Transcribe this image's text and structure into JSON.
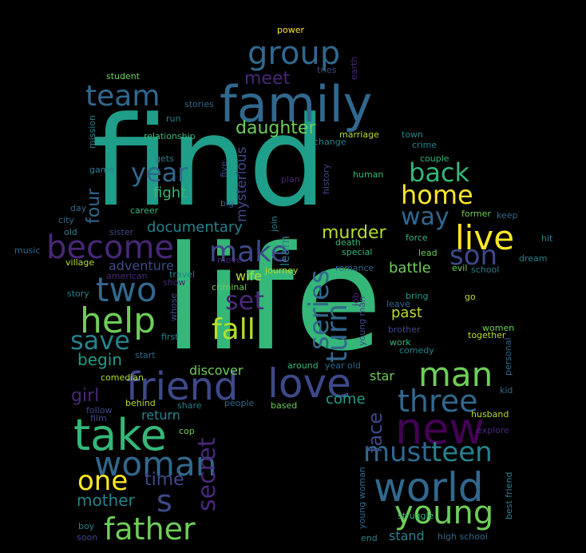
{
  "colors": {
    "background": "#000000",
    "palette_viridis": [
      "#440154",
      "#482878",
      "#3e4989",
      "#31688e",
      "#26828e",
      "#1f9e89",
      "#35b779",
      "#6ece58",
      "#b5de2b",
      "#fde725"
    ]
  },
  "words": [
    {
      "text": "find",
      "color": "#1f9e89"
    },
    {
      "text": "life",
      "color": "#35b779"
    },
    {
      "text": "family",
      "color": "#31688e"
    },
    {
      "text": "friend",
      "color": "#3e4989"
    },
    {
      "text": "love",
      "color": "#3e4989"
    },
    {
      "text": "take",
      "color": "#35b779"
    },
    {
      "text": "world",
      "color": "#31688e"
    },
    {
      "text": "new",
      "color": "#440154"
    },
    {
      "text": "woman",
      "color": "#31688e"
    },
    {
      "text": "man",
      "color": "#6ece58"
    },
    {
      "text": "young",
      "color": "#6ece58"
    },
    {
      "text": "father",
      "color": "#6ece58"
    },
    {
      "text": "two",
      "color": "#31688e"
    },
    {
      "text": "become",
      "color": "#482878"
    },
    {
      "text": "help",
      "color": "#6ece58"
    },
    {
      "text": "three",
      "color": "#31688e"
    },
    {
      "text": "group",
      "color": "#31688e"
    },
    {
      "text": "team",
      "color": "#31688e"
    },
    {
      "text": "make",
      "color": "#3e4989"
    },
    {
      "text": "live",
      "color": "#fde725"
    },
    {
      "text": "fall",
      "color": "#b5de2b"
    },
    {
      "text": "series",
      "color": "#31688e"
    },
    {
      "text": "turn",
      "color": "#31688e"
    },
    {
      "text": "must",
      "color": "#31688e"
    },
    {
      "text": "teen",
      "color": "#26828e"
    },
    {
      "text": "save",
      "color": "#26828e"
    },
    {
      "text": "one",
      "color": "#fde725"
    },
    {
      "text": "year",
      "color": "#31688e"
    },
    {
      "text": "back",
      "color": "#35b779"
    },
    {
      "text": "home",
      "color": "#fde725"
    },
    {
      "text": "son",
      "color": "#3e4989"
    },
    {
      "text": "set",
      "color": "#482878"
    },
    {
      "text": "way",
      "color": "#31688e"
    },
    {
      "text": "secret",
      "color": "#482878"
    },
    {
      "text": "daughter",
      "color": "#6ece58"
    },
    {
      "text": "meet",
      "color": "#482878"
    },
    {
      "text": "murder",
      "color": "#b5de2b"
    },
    {
      "text": "face",
      "color": "#3e4989"
    },
    {
      "text": "girl",
      "color": "#482878"
    },
    {
      "text": "four",
      "color": "#31688e"
    },
    {
      "text": "begin",
      "color": "#1f9e89"
    },
    {
      "text": "time",
      "color": "#3e4989"
    },
    {
      "text": "s",
      "color": "#3e4989"
    },
    {
      "text": "mother",
      "color": "#26828e"
    },
    {
      "text": "documentary",
      "color": "#26828e"
    },
    {
      "text": "adventure",
      "color": "#3e4989"
    },
    {
      "text": "fight",
      "color": "#35b779"
    },
    {
      "text": "mysterious",
      "color": "#3e4989"
    },
    {
      "text": "battle",
      "color": "#6ece58"
    },
    {
      "text": "past",
      "color": "#b5de2b"
    },
    {
      "text": "discover",
      "color": "#6ece58"
    },
    {
      "text": "wife",
      "color": "#b5de2b"
    },
    {
      "text": "come",
      "color": "#1f9e89"
    },
    {
      "text": "stand",
      "color": "#26828e"
    },
    {
      "text": "star",
      "color": "#6ece58"
    },
    {
      "text": "return",
      "color": "#26828e"
    },
    {
      "text": "learn",
      "color": "#26828e"
    },
    {
      "text": "power",
      "color": "#fde725"
    },
    {
      "text": "student",
      "color": "#6ece58"
    },
    {
      "text": "tries",
      "color": "#3e4989"
    },
    {
      "text": "earth",
      "color": "#482878"
    },
    {
      "text": "stories",
      "color": "#31688e"
    },
    {
      "text": "mission",
      "color": "#26828e"
    },
    {
      "text": "run",
      "color": "#26828e"
    },
    {
      "text": "relationship",
      "color": "#35b779"
    },
    {
      "text": "marriage",
      "color": "#b5de2b"
    },
    {
      "text": "town",
      "color": "#26828e"
    },
    {
      "text": "change",
      "color": "#26828e"
    },
    {
      "text": "crime",
      "color": "#26828e"
    },
    {
      "text": "couple",
      "color": "#35b779"
    },
    {
      "text": "gets",
      "color": "#26828e"
    },
    {
      "text": "game",
      "color": "#26828e"
    },
    {
      "text": "five",
      "color": "#3e4989"
    },
    {
      "text": "plan",
      "color": "#482878"
    },
    {
      "text": "history",
      "color": "#3e4989"
    },
    {
      "text": "human",
      "color": "#35b779"
    },
    {
      "text": "day",
      "color": "#31688e"
    },
    {
      "text": "big",
      "color": "#31688e"
    },
    {
      "text": "join",
      "color": "#26828e"
    },
    {
      "text": "former",
      "color": "#6ece58"
    },
    {
      "text": "keep",
      "color": "#31688e"
    },
    {
      "text": "career",
      "color": "#35b779"
    },
    {
      "text": "city",
      "color": "#31688e"
    },
    {
      "text": "old",
      "color": "#26828e"
    },
    {
      "text": "sister",
      "color": "#3e4989"
    },
    {
      "text": "hit",
      "color": "#26828e"
    },
    {
      "text": "music",
      "color": "#31688e"
    },
    {
      "text": "force",
      "color": "#35b779"
    },
    {
      "text": "death",
      "color": "#35b779"
    },
    {
      "text": "lead",
      "color": "#6ece58"
    },
    {
      "text": "village",
      "color": "#b5de2b"
    },
    {
      "text": "move",
      "color": "#482878"
    },
    {
      "text": "journey",
      "color": "#b5de2b"
    },
    {
      "text": "special",
      "color": "#35b779"
    },
    {
      "text": "dream",
      "color": "#26828e"
    },
    {
      "text": "american",
      "color": "#482878"
    },
    {
      "text": "travel",
      "color": "#26828e"
    },
    {
      "text": "romance",
      "color": "#31688e"
    },
    {
      "text": "evil",
      "color": "#6ece58"
    },
    {
      "text": "school",
      "color": "#26828e"
    },
    {
      "text": "show",
      "color": "#482878"
    },
    {
      "text": "criminal",
      "color": "#6ece58"
    },
    {
      "text": "job",
      "color": "#482878"
    },
    {
      "text": "bring",
      "color": "#1f9e89"
    },
    {
      "text": "story",
      "color": "#26828e"
    },
    {
      "text": "go",
      "color": "#b5de2b"
    },
    {
      "text": "young man",
      "color": "#3e4989"
    },
    {
      "text": "leave",
      "color": "#31688e"
    },
    {
      "text": "whose",
      "color": "#3e4989"
    },
    {
      "text": "first",
      "color": "#26828e"
    },
    {
      "text": "brother",
      "color": "#3e4989"
    },
    {
      "text": "women",
      "color": "#6ece58"
    },
    {
      "text": "together",
      "color": "#b5de2b"
    },
    {
      "text": "start",
      "color": "#31688e"
    },
    {
      "text": "work",
      "color": "#35b779"
    },
    {
      "text": "personal",
      "color": "#31688e"
    },
    {
      "text": "around",
      "color": "#35b779"
    },
    {
      "text": "year old",
      "color": "#31688e"
    },
    {
      "text": "comedy",
      "color": "#26828e"
    },
    {
      "text": "comedian",
      "color": "#b5de2b"
    },
    {
      "text": "kid",
      "color": "#31688e"
    },
    {
      "text": "follow",
      "color": "#3e4989"
    },
    {
      "text": "behind",
      "color": "#b5de2b"
    },
    {
      "text": "share",
      "color": "#26828e"
    },
    {
      "text": "people",
      "color": "#31688e"
    },
    {
      "text": "based",
      "color": "#6ece58"
    },
    {
      "text": "film",
      "color": "#3e4989"
    },
    {
      "text": "husband",
      "color": "#b5de2b"
    },
    {
      "text": "cop",
      "color": "#6ece58"
    },
    {
      "text": "explore",
      "color": "#482878"
    },
    {
      "text": "struggle",
      "color": "#35b779"
    },
    {
      "text": "young woman",
      "color": "#31688e"
    },
    {
      "text": "best friend",
      "color": "#26828e"
    },
    {
      "text": "boy",
      "color": "#26828e"
    },
    {
      "text": "soon",
      "color": "#3e4989"
    },
    {
      "text": "end",
      "color": "#26828e"
    },
    {
      "text": "high school",
      "color": "#31688e"
    }
  ]
}
